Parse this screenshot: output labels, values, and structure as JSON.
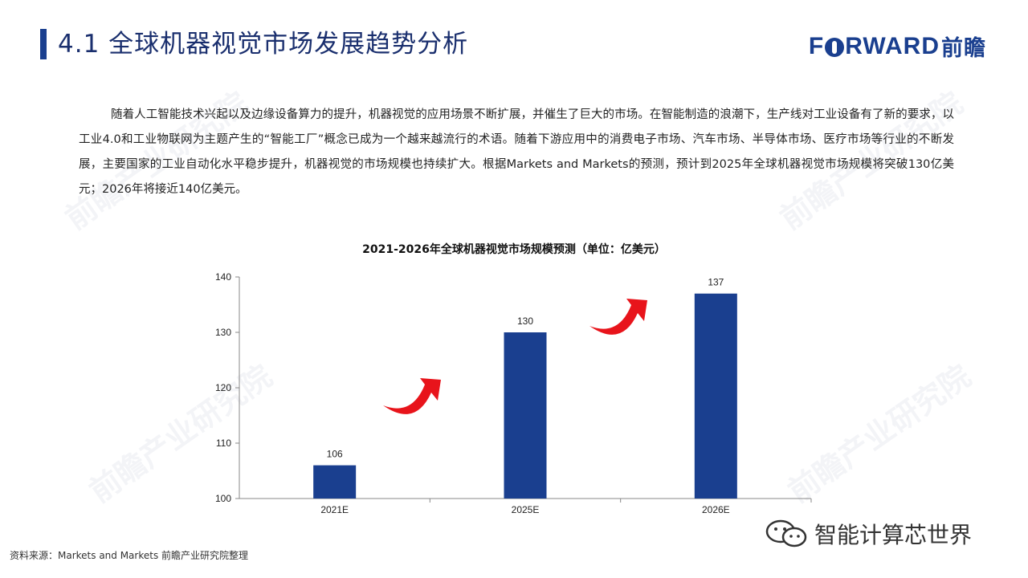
{
  "header": {
    "title": "4.1 全球机器视觉市场发展趋势分析",
    "logo_latin_1": "F",
    "logo_latin_2": "RWARD",
    "logo_cjk": "前瞻"
  },
  "intro_text": "随着人工智能技术兴起以及边缘设备算力的提升，机器视觉的应用场景不断扩展，并催生了巨大的市场。在智能制造的浪潮下，生产线对工业设备有了新的要求，以工业4.0和工业物联网为主题产生的“智能工厂”概念已成为一个越来越流行的术语。随着下游应用中的消费电子市场、汽车市场、半导体市场、医疗市场等行业的不断发展，主要国家的工业自动化水平稳步提升，机器视觉的市场规模也持续扩大。根据Markets and Markets的预测，预计到2025年全球机器视觉市场规模将突破130亿美元；2026年将接近140亿美元。",
  "watermark_text": "前瞻产业研究院",
  "chart_data": {
    "type": "bar",
    "title": "2021-2026年全球机器视觉市场规模预测（单位：亿美元）",
    "categories": [
      "2021E",
      "2025E",
      "2026E"
    ],
    "values": [
      106,
      130,
      137
    ],
    "data_labels": [
      "106",
      "130",
      "137"
    ],
    "ylim": [
      100,
      140
    ],
    "yticks": [
      "100",
      "110",
      "120",
      "130",
      "140"
    ],
    "bar_color": "#1a3f8f",
    "arrow_color": "#e8141b",
    "grid": false,
    "legend": "none"
  },
  "footer": {
    "source": "资料来源：Markets and Markets 前瞻产业研究院整理",
    "wechat_label": "智能计算芯世界"
  },
  "colors": {
    "accent": "#1a3f8f",
    "title_text": "#1a2f6e"
  }
}
